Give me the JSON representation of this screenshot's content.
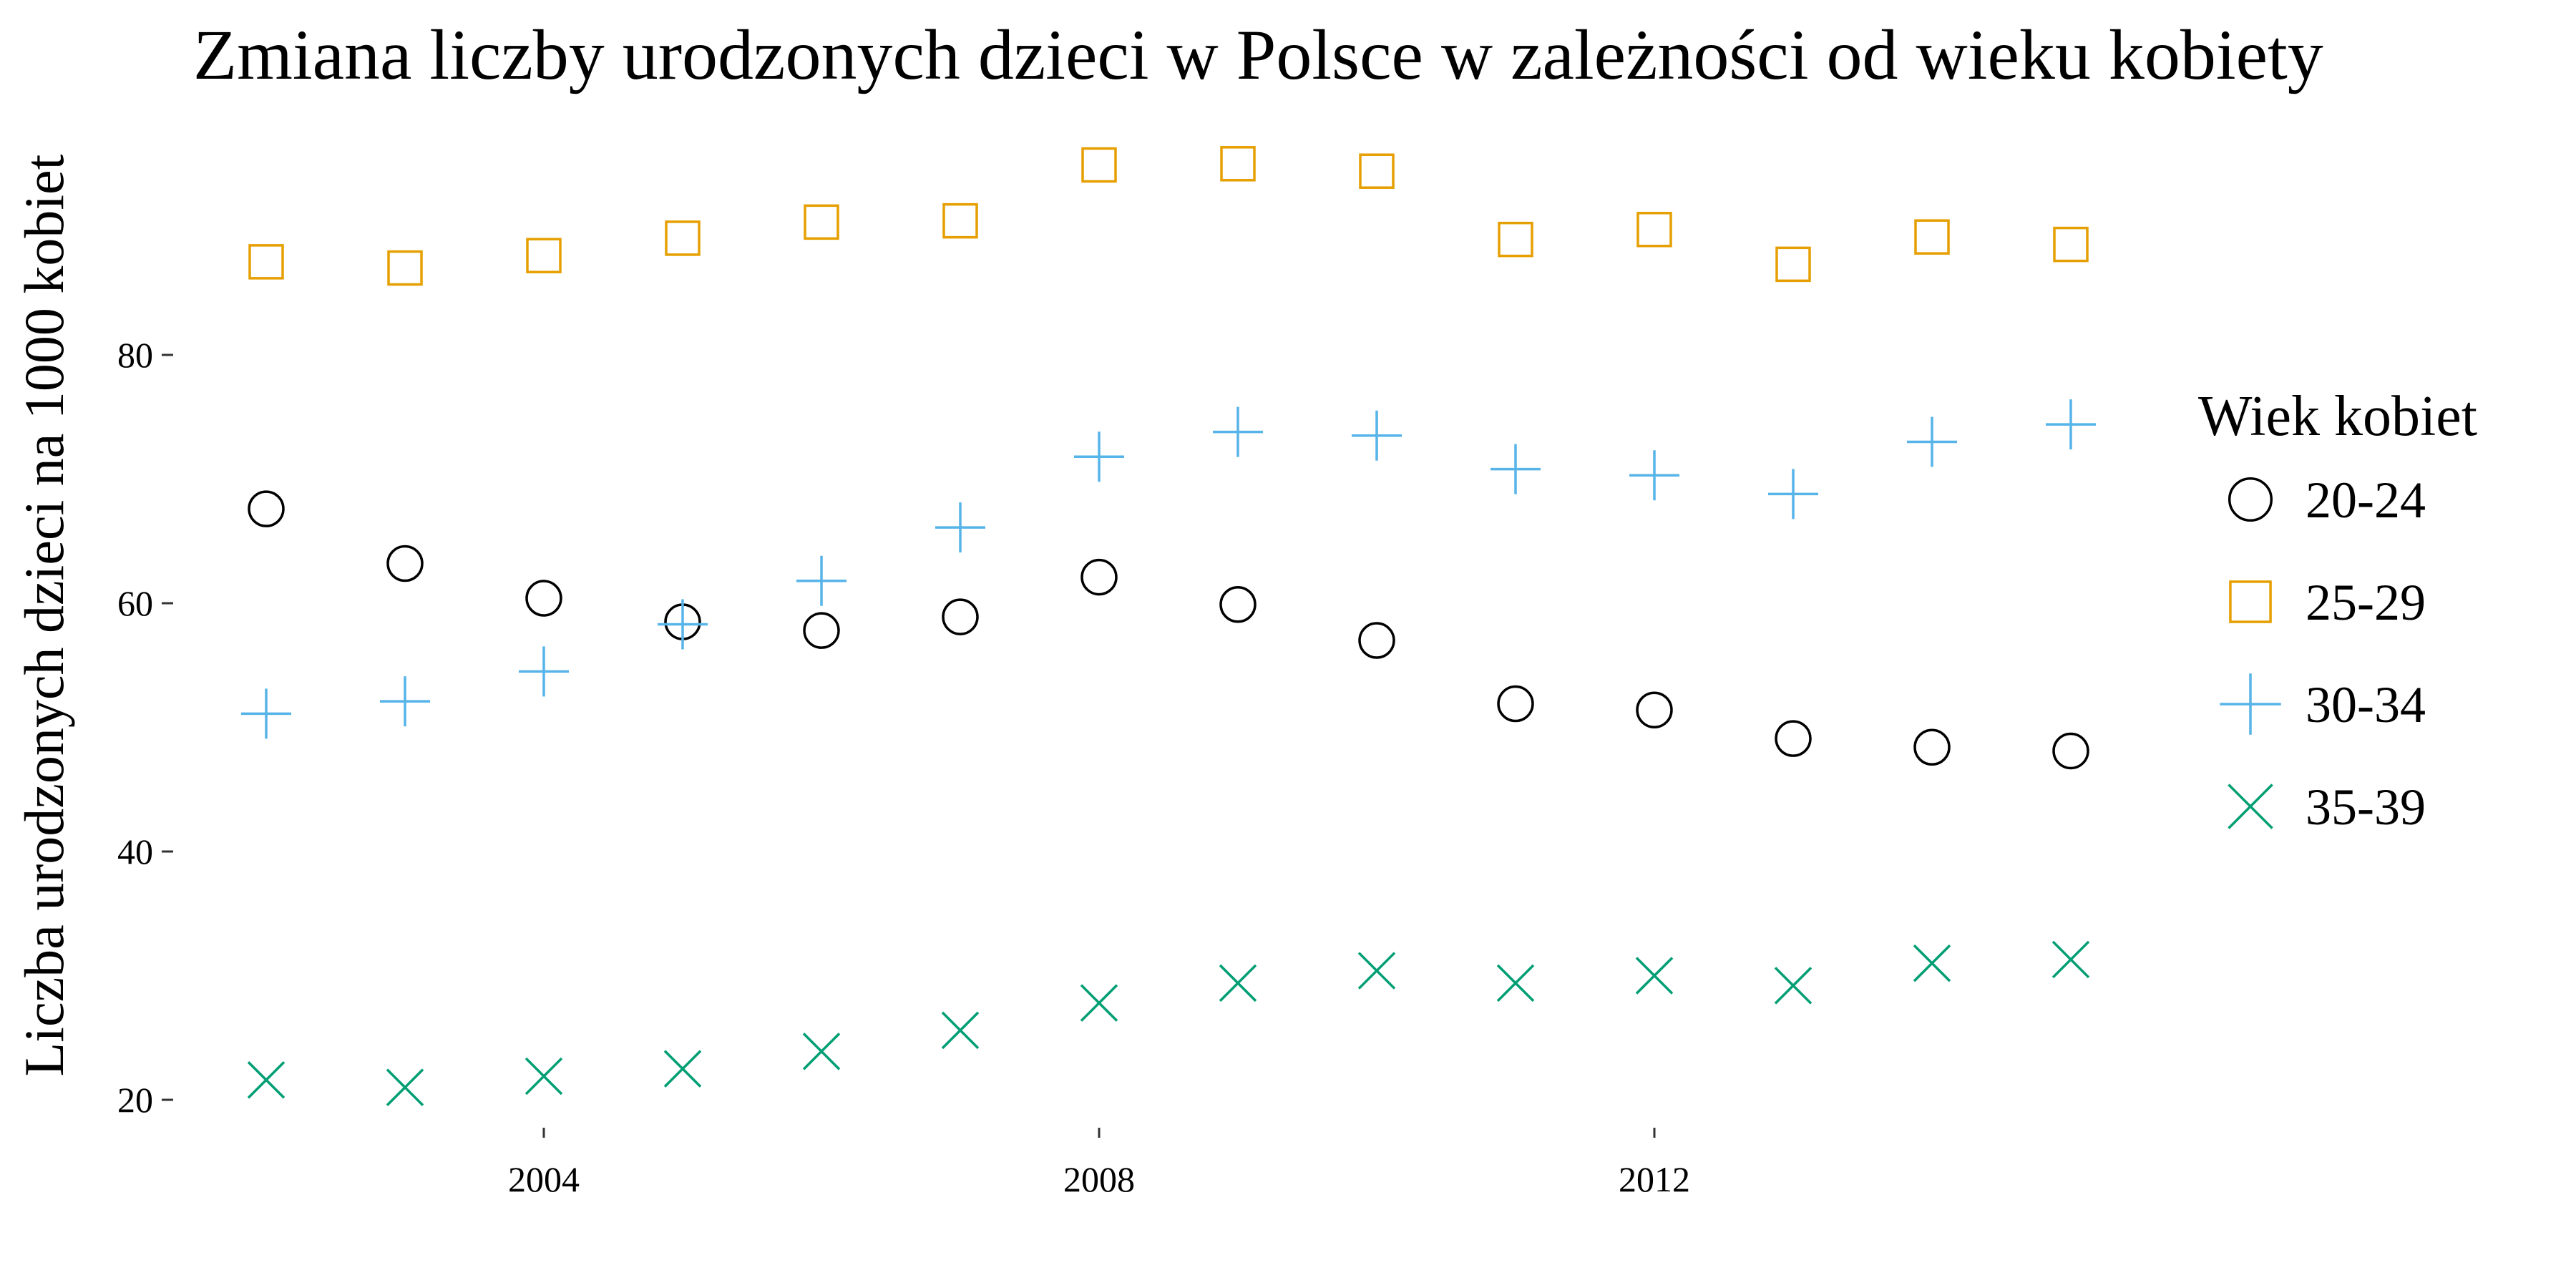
{
  "chart_data": {
    "type": "scatter",
    "title": "Zmiana liczby urodzonych dzieci w Polsce w zależności od wieku kobiety",
    "xlabel": "",
    "ylabel": "Liczba urodzonych dzieci na 1000 kobiet",
    "xlim": [
      2002,
      2015
    ],
    "ylim": [
      18,
      100
    ],
    "x_ticks": [
      2004,
      2008,
      2012
    ],
    "y_ticks": [
      20,
      40,
      60,
      80
    ],
    "grid": false,
    "legend": {
      "title": "Wiek kobiet",
      "position": "right"
    },
    "x": [
      2002,
      2003,
      2004,
      2005,
      2006,
      2007,
      2008,
      2009,
      2010,
      2011,
      2012,
      2013,
      2014,
      2015
    ],
    "series": [
      {
        "name": "20-24",
        "marker": "circle",
        "color": "#000000",
        "values": [
          67.6,
          63.2,
          60.4,
          58.5,
          57.8,
          58.9,
          62.1,
          59.9,
          57.0,
          51.9,
          51.4,
          49.1,
          48.4,
          48.1
        ]
      },
      {
        "name": "25-29",
        "marker": "square",
        "color": "#E69F00",
        "values": [
          87.5,
          87.0,
          88.0,
          89.4,
          90.7,
          90.8,
          95.3,
          95.4,
          94.8,
          89.3,
          90.1,
          87.3,
          89.5,
          88.9
        ]
      },
      {
        "name": "30-34",
        "marker": "plus",
        "color": "#56B4E9",
        "values": [
          51.1,
          52.1,
          54.5,
          58.3,
          61.8,
          66.1,
          71.8,
          73.8,
          73.5,
          70.8,
          70.3,
          68.8,
          73.0,
          74.4
        ]
      },
      {
        "name": "35-39",
        "marker": "cross",
        "color": "#009E73",
        "values": [
          21.6,
          21.0,
          21.9,
          22.5,
          23.9,
          25.6,
          27.8,
          29.4,
          30.4,
          29.4,
          30.0,
          29.2,
          31.0,
          31.3
        ]
      }
    ]
  }
}
